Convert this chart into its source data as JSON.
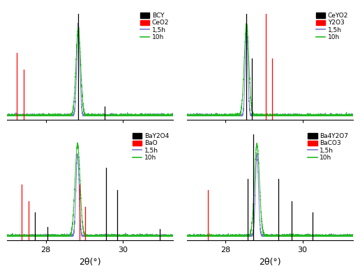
{
  "subplots": [
    {
      "legend_labels": [
        "BCY",
        "CeO2",
        "1,5h",
        "10h"
      ],
      "black_vlines": [
        [
          28.84,
          0.95
        ],
        [
          29.52,
          0.12
        ]
      ],
      "red_vlines": [
        [
          27.25,
          0.6
        ],
        [
          27.42,
          0.45
        ]
      ],
      "peaks_15h": [
        [
          28.84,
          0.92,
          0.04
        ]
      ],
      "peaks_10h": [
        [
          28.84,
          0.88,
          0.06
        ]
      ],
      "noise_amp": 0.008
    },
    {
      "legend_labels": [
        "CeYO2",
        "Y2O3",
        "1,5h",
        "10h"
      ],
      "black_vlines": [
        [
          28.55,
          0.95
        ],
        [
          28.68,
          0.55
        ]
      ],
      "red_vlines": [
        [
          29.05,
          0.95
        ],
        [
          29.22,
          0.55
        ]
      ],
      "peaks_15h": [
        [
          28.55,
          0.88,
          0.035
        ]
      ],
      "peaks_10h": [
        [
          28.55,
          0.92,
          0.06
        ]
      ],
      "noise_amp": 0.008
    },
    {
      "legend_labels": [
        "BaY2O4",
        "BaO",
        "1,5h",
        "10h"
      ],
      "black_vlines": [
        [
          27.72,
          0.25
        ],
        [
          28.05,
          0.12
        ],
        [
          29.55,
          0.65
        ],
        [
          29.85,
          0.45
        ],
        [
          30.95,
          0.1
        ]
      ],
      "red_vlines": [
        [
          27.38,
          0.5
        ],
        [
          27.55,
          0.35
        ],
        [
          28.88,
          0.5
        ],
        [
          29.02,
          0.3
        ]
      ],
      "peaks_15h": [
        [
          28.82,
          0.82,
          0.04
        ]
      ],
      "peaks_10h": [
        [
          28.82,
          0.92,
          0.065
        ]
      ],
      "noise_amp": 0.008
    },
    {
      "legend_labels": [
        "Ba4Y2O7",
        "BaCO3",
        "1,5h",
        "10h"
      ],
      "black_vlines": [
        [
          28.58,
          0.55
        ],
        [
          28.72,
          0.95
        ],
        [
          29.38,
          0.55
        ],
        [
          29.72,
          0.35
        ],
        [
          30.25,
          0.25
        ]
      ],
      "red_vlines": [
        [
          27.55,
          0.45
        ]
      ],
      "peaks_15h": [
        [
          28.82,
          0.82,
          0.04
        ]
      ],
      "peaks_10h": [
        [
          28.82,
          0.92,
          0.065
        ]
      ],
      "noise_amp": 0.008
    }
  ],
  "xlim": [
    27.0,
    31.3
  ],
  "ylim": [
    -0.04,
    1.08
  ],
  "xticks": [
    28,
    30
  ],
  "xlabel": "2θ(°)",
  "line_color_15h": "#7777cc",
  "line_color_10h": "#22bb22"
}
